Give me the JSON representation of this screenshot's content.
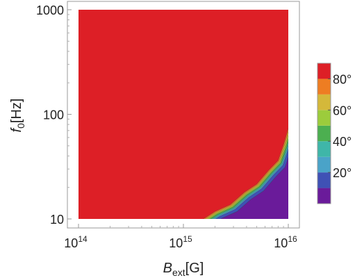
{
  "chart_data": {
    "type": "heatmap",
    "subtype": "contour",
    "x": {
      "label_main": "B",
      "label_sub": "ext",
      "label_unit": "[G]",
      "scale": "log",
      "range": [
        100000000000000.0,
        1e+16
      ],
      "ticks": [
        {
          "value": 100000000000000.0,
          "base": "10",
          "exp": "14"
        },
        {
          "value": 1000000000000000.0,
          "base": "10",
          "exp": "15"
        },
        {
          "value": 1e+16,
          "base": "10",
          "exp": "16"
        }
      ]
    },
    "y": {
      "label_main": "f",
      "label_sub": "0",
      "label_unit": "[Hz]",
      "scale": "log",
      "range": [
        10,
        1000
      ],
      "ticks": [
        {
          "value": 10,
          "label": "10"
        },
        {
          "value": 100,
          "label": "100"
        },
        {
          "value": 1000,
          "label": "1000"
        }
      ]
    },
    "field": "angle_deg",
    "background_level_deg": 90,
    "boundary": [
      {
        "B": 1500000000000000.0,
        "f": 10
      },
      {
        "B": 2000000000000000.0,
        "f": 11.5
      },
      {
        "B": 2800000000000000.0,
        "f": 14
      },
      {
        "B": 3800000000000000.0,
        "f": 17.5
      },
      {
        "B": 5000000000000000.0,
        "f": 22
      },
      {
        "B": 6500000000000000.0,
        "f": 28.5
      },
      {
        "B": 8000000000000000.0,
        "f": 37
      },
      {
        "B": 9000000000000000.0,
        "f": 50
      },
      {
        "B": 1e+16,
        "f": 75
      }
    ],
    "interior_level_deg": 5,
    "colorbar": {
      "range": [
        0,
        90
      ],
      "ticks": [
        {
          "value": 20,
          "label": "20°"
        },
        {
          "value": 40,
          "label": "40°"
        },
        {
          "value": 60,
          "label": "60°"
        },
        {
          "value": 80,
          "label": "80°"
        }
      ],
      "bands": [
        {
          "from": 0,
          "to": 10,
          "color": "#6a1b9a"
        },
        {
          "from": 10,
          "to": 20,
          "color": "#3f51b5"
        },
        {
          "from": 20,
          "to": 30,
          "color": "#4aa3c8"
        },
        {
          "from": 30,
          "to": 40,
          "color": "#3fb6a8"
        },
        {
          "from": 40,
          "to": 50,
          "color": "#4caf50"
        },
        {
          "from": 50,
          "to": 60,
          "color": "#9ccc3c"
        },
        {
          "from": 60,
          "to": 70,
          "color": "#d4b83a"
        },
        {
          "from": 70,
          "to": 80,
          "color": "#ee7d22"
        },
        {
          "from": 80,
          "to": 90,
          "color": "#dd1f26"
        }
      ]
    }
  }
}
